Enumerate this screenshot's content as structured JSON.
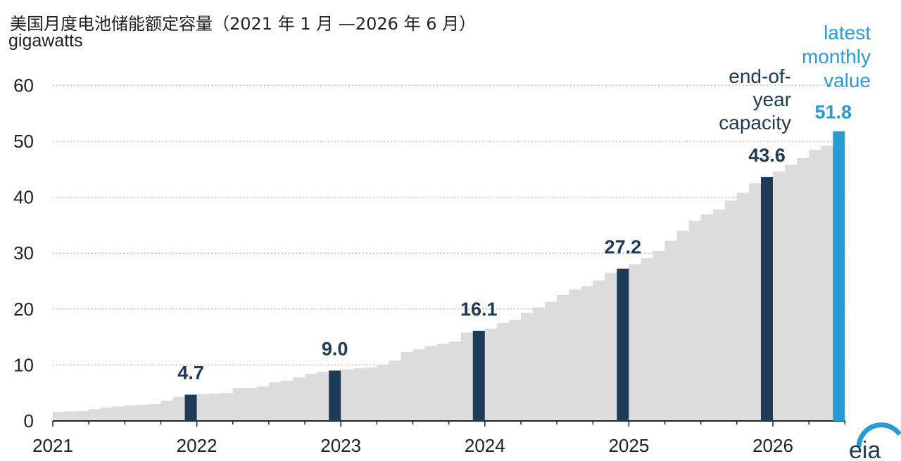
{
  "title": "美国月度电池储能额定容量（2021 年 1 月 —2026 年 6 月）",
  "unit_label": "gigawatts",
  "annotations": {
    "end_of_year": [
      "end-of-",
      "year",
      "capacity"
    ],
    "latest": [
      "latest",
      "monthly",
      "value"
    ]
  },
  "colors": {
    "monthly_area": "#dcdcdc",
    "end_of_year_bar": "#1d3b57",
    "latest_bar": "#2a9bd2",
    "grid": "#bdbdbd"
  },
  "chart_data": {
    "type": "bar",
    "title": "美国月度电池储能额定容量（2021 年 1 月 —2026 年 6 月）",
    "ylabel": "gigawatts",
    "xlabel": "",
    "ylim": [
      0,
      65
    ],
    "yticks": [
      0,
      10,
      20,
      30,
      40,
      50,
      60
    ],
    "xtick_labels": [
      "2021",
      "2022",
      "2023",
      "2024",
      "2025",
      "2026"
    ],
    "grid": true,
    "monthly_values": [
      1.6,
      1.7,
      1.8,
      2.1,
      2.4,
      2.6,
      2.8,
      2.9,
      3.0,
      3.6,
      4.3,
      4.7,
      4.8,
      4.9,
      5.0,
      5.9,
      5.9,
      6.2,
      6.9,
      7.2,
      7.8,
      8.4,
      8.8,
      9.0,
      9.2,
      9.4,
      9.6,
      10.0,
      10.8,
      12.3,
      12.8,
      13.4,
      13.8,
      14.2,
      15.8,
      16.1,
      16.5,
      17.5,
      18.1,
      19.3,
      20.3,
      21.3,
      22.5,
      23.5,
      24.1,
      25.1,
      26.5,
      27.2,
      28.0,
      29.1,
      30.4,
      32.2,
      34.0,
      35.8,
      36.9,
      37.8,
      39.4,
      40.8,
      42.5,
      43.6,
      44.6,
      45.8,
      47.0,
      48.5,
      49.2,
      51.8
    ],
    "end_of_year": [
      {
        "year": "2021",
        "value": 4.7,
        "label": "4.7"
      },
      {
        "year": "2022",
        "value": 9.0,
        "label": "9.0"
      },
      {
        "year": "2023",
        "value": 16.1,
        "label": "16.1"
      },
      {
        "year": "2024",
        "value": 27.2,
        "label": "27.2"
      },
      {
        "year": "2025",
        "value": 43.6,
        "label": "43.6"
      }
    ],
    "latest": {
      "value": 51.8,
      "label": "51.8"
    }
  }
}
